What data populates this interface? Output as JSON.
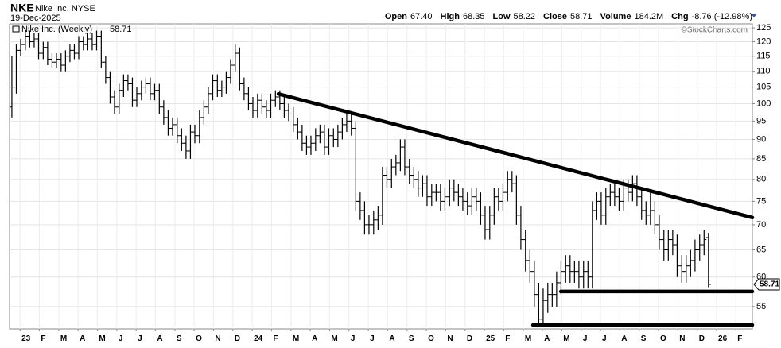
{
  "header": {
    "symbol": "NKE",
    "name": "Nike Inc. NYSE",
    "date": "19-Dec-2025",
    "stats": [
      {
        "label": "Open",
        "value": "67.40"
      },
      {
        "label": "High",
        "value": "68.35"
      },
      {
        "label": "Low",
        "value": "58.22"
      },
      {
        "label": "Close",
        "value": "58.71"
      },
      {
        "label": "Volume",
        "value": "184.2M"
      },
      {
        "label": "Chg",
        "value": "-8.76 (-12.98%)"
      }
    ],
    "watermark": "©StockCharts.com"
  },
  "chart_data": {
    "type": "ohlc",
    "log_y": true,
    "grid": true,
    "x": [
      2022.965,
      2022.984,
      2023.003,
      2023.023,
      2023.042,
      2023.061,
      2023.08,
      2023.1,
      2023.119,
      2023.138,
      2023.157,
      2023.177,
      2023.196,
      2023.215,
      2023.234,
      2023.253,
      2023.273,
      2023.292,
      2023.311,
      2023.33,
      2023.35,
      2023.369,
      2023.388,
      2023.407,
      2023.427,
      2023.446,
      2023.465,
      2023.484,
      2023.503,
      2023.523,
      2023.542,
      2023.561,
      2023.58,
      2023.6,
      2023.619,
      2023.638,
      2023.657,
      2023.677,
      2023.696,
      2023.715,
      2023.734,
      2023.753,
      2023.773,
      2023.792,
      2023.811,
      2023.83,
      2023.85,
      2023.869,
      2023.888,
      2023.907,
      2023.927,
      2023.946,
      2023.965,
      2023.984,
      2024.003,
      2024.023,
      2024.042,
      2024.061,
      2024.08,
      2024.1,
      2024.119,
      2024.138,
      2024.157,
      2024.177,
      2024.196,
      2024.215,
      2024.234,
      2024.253,
      2024.273,
      2024.292,
      2024.311,
      2024.33,
      2024.35,
      2024.369,
      2024.388,
      2024.407,
      2024.427,
      2024.446,
      2024.465,
      2024.484,
      2024.503,
      2024.523,
      2024.542,
      2024.561,
      2024.58,
      2024.6,
      2024.619,
      2024.638,
      2024.657,
      2024.677,
      2024.696,
      2024.715,
      2024.734,
      2024.753,
      2024.773,
      2024.792,
      2024.811,
      2024.83,
      2024.85,
      2024.869,
      2024.888,
      2024.907,
      2024.927,
      2024.946,
      2024.965,
      2024.984,
      2025.003,
      2025.023,
      2025.042,
      2025.061,
      2025.08,
      2025.1,
      2025.119,
      2025.138,
      2025.157,
      2025.177,
      2025.196,
      2025.215,
      2025.234,
      2025.253,
      2025.273,
      2025.292,
      2025.311,
      2025.33,
      2025.35,
      2025.369,
      2025.388,
      2025.407,
      2025.427,
      2025.446,
      2025.465,
      2025.484,
      2025.503,
      2025.523,
      2025.542,
      2025.561,
      2025.58,
      2025.6,
      2025.619,
      2025.638,
      2025.657,
      2025.677,
      2025.696,
      2025.715,
      2025.734,
      2025.753,
      2025.773,
      2025.792,
      2025.811,
      2025.83,
      2025.85,
      2025.869,
      2025.888,
      2025.907,
      2025.927,
      2025.946,
      2025.965
    ],
    "series": [
      {
        "name": "Nike Inc. (Weekly)",
        "color": "#000000",
        "open": [
          99,
          105,
          117,
          119,
          122,
          120,
          121,
          116,
          118,
          114,
          113,
          114,
          112,
          115,
          117,
          116,
          120,
          119,
          121,
          119,
          122,
          113,
          108,
          102,
          99,
          104,
          107,
          106,
          101,
          103,
          105,
          106,
          103,
          104,
          99,
          96,
          93,
          94,
          91,
          89,
          87,
          92,
          91,
          96,
          99,
          103,
          107,
          104,
          105,
          108,
          112,
          116,
          106,
          103,
          100,
          98,
          101,
          99,
          98,
          101,
          102,
          100,
          98,
          97,
          94,
          92,
          89,
          88,
          89,
          91,
          92,
          88,
          91,
          90,
          92,
          94,
          95,
          93,
          75,
          73,
          70,
          70,
          71,
          72,
          81,
          80,
          83,
          84,
          88,
          83,
          81,
          80,
          78,
          79,
          76,
          77,
          77,
          75,
          76,
          78,
          77,
          76,
          75,
          74,
          76,
          75,
          72,
          69,
          72,
          76,
          75,
          77,
          80,
          79,
          72,
          67,
          63,
          61,
          57,
          53,
          56,
          57,
          57,
          59,
          61,
          62,
          61,
          61,
          60,
          61,
          60,
          73,
          75,
          72,
          76,
          77,
          76,
          75,
          78,
          77,
          79,
          76,
          73,
          72,
          73,
          70,
          67,
          65,
          67,
          66,
          62,
          61,
          62,
          63,
          65,
          66,
          67.4
        ],
        "high": [
          115,
          119,
          121,
          124,
          124,
          123,
          123,
          120,
          120,
          116,
          116,
          116,
          117,
          119,
          119,
          122,
          122,
          123,
          123,
          124,
          124,
          115,
          110,
          104,
          106,
          109,
          109,
          108,
          105,
          107,
          108,
          108,
          106,
          106,
          101,
          98,
          96,
          96,
          93,
          91,
          94,
          94,
          98,
          101,
          105,
          109,
          109,
          107,
          110,
          114,
          119,
          118,
          108,
          105,
          102,
          103,
          103,
          101,
          103,
          104,
          104,
          102,
          100,
          99,
          96,
          94,
          91,
          91,
          93,
          94,
          94,
          93,
          93,
          94,
          96,
          97,
          97,
          95,
          77,
          75,
          72,
          73,
          74,
          83,
          83,
          85,
          86,
          90,
          90,
          85,
          83,
          82,
          81,
          81,
          79,
          79,
          79,
          78,
          80,
          80,
          79,
          78,
          77,
          78,
          78,
          77,
          74,
          74,
          78,
          78,
          79,
          82,
          82,
          81,
          74,
          69,
          65,
          63,
          59,
          58,
          59,
          59,
          61,
          63,
          64,
          64,
          63,
          63,
          63,
          63,
          75,
          77,
          77,
          78,
          79,
          79,
          78,
          80,
          80,
          81,
          81,
          78,
          75,
          77,
          75,
          72,
          69,
          69,
          69,
          68,
          64,
          64,
          65,
          67,
          68,
          69,
          68.35
        ],
        "low": [
          96,
          103,
          115,
          117,
          118,
          118,
          114,
          114,
          112,
          111,
          111,
          110,
          110,
          113,
          114,
          114,
          117,
          117,
          117,
          117,
          111,
          106,
          100,
          97,
          97,
          102,
          104,
          99,
          99,
          101,
          103,
          101,
          101,
          97,
          94,
          91,
          91,
          89,
          87,
          85,
          85,
          89,
          89,
          94,
          97,
          101,
          102,
          102,
          103,
          106,
          110,
          104,
          101,
          98,
          96,
          96,
          97,
          96,
          96,
          99,
          98,
          96,
          95,
          92,
          90,
          87,
          86,
          86,
          87,
          89,
          86,
          86,
          88,
          88,
          90,
          92,
          91,
          73,
          71,
          68,
          68,
          68,
          69,
          70,
          78,
          78,
          81,
          82,
          81,
          79,
          78,
          76,
          76,
          74,
          74,
          75,
          73,
          73,
          74,
          75,
          74,
          73,
          72,
          72,
          73,
          70,
          67,
          67,
          70,
          73,
          73,
          75,
          77,
          70,
          65,
          61,
          59,
          55,
          52,
          52,
          54,
          55,
          55,
          57,
          59,
          59,
          59,
          58,
          58,
          58,
          58,
          71,
          70,
          70,
          74,
          74,
          73,
          73,
          75,
          75,
          74,
          71,
          70,
          70,
          68,
          65,
          63,
          63,
          64,
          60,
          59,
          59,
          60,
          61,
          63,
          64,
          58.22
        ],
        "close": [
          105,
          117,
          119,
          122,
          120,
          121,
          116,
          118,
          114,
          113,
          114,
          112,
          115,
          117,
          116,
          120,
          119,
          121,
          119,
          122,
          113,
          108,
          102,
          99,
          104,
          107,
          106,
          101,
          103,
          105,
          106,
          103,
          104,
          99,
          96,
          93,
          94,
          91,
          89,
          87,
          92,
          91,
          96,
          99,
          103,
          107,
          104,
          105,
          108,
          112,
          116,
          106,
          103,
          100,
          98,
          101,
          99,
          98,
          101,
          102,
          100,
          98,
          97,
          94,
          92,
          89,
          88,
          89,
          91,
          92,
          88,
          91,
          90,
          92,
          94,
          95,
          93,
          75,
          73,
          70,
          70,
          71,
          72,
          81,
          80,
          83,
          84,
          88,
          83,
          81,
          80,
          78,
          79,
          76,
          77,
          77,
          75,
          76,
          78,
          77,
          76,
          75,
          74,
          76,
          75,
          72,
          69,
          72,
          76,
          75,
          77,
          80,
          79,
          72,
          67,
          63,
          61,
          57,
          53,
          56,
          57,
          57,
          59,
          61,
          62,
          61,
          61,
          60,
          61,
          60,
          73,
          75,
          72,
          76,
          77,
          76,
          75,
          78,
          77,
          79,
          76,
          73,
          72,
          73,
          70,
          67,
          65,
          67,
          66,
          62,
          61,
          62,
          63,
          65,
          66,
          67,
          58.71
        ]
      }
    ],
    "xlim": [
      2022.955,
      2026.154
    ],
    "ylim": [
      51.5,
      126.5
    ],
    "yticks": [
      55,
      60,
      65,
      70,
      75,
      80,
      85,
      90,
      95,
      100,
      105,
      110,
      115,
      120,
      125
    ],
    "xticks": [
      {
        "value": 2023,
        "label": "23"
      },
      {
        "value": 2023.083,
        "label": "F"
      },
      {
        "value": 2023.167,
        "label": "M"
      },
      {
        "value": 2023.25,
        "label": "A"
      },
      {
        "value": 2023.333,
        "label": "M"
      },
      {
        "value": 2023.417,
        "label": "J"
      },
      {
        "value": 2023.5,
        "label": "J"
      },
      {
        "value": 2023.583,
        "label": "A"
      },
      {
        "value": 2023.667,
        "label": "S"
      },
      {
        "value": 2023.75,
        "label": "O"
      },
      {
        "value": 2023.833,
        "label": "N"
      },
      {
        "value": 2023.917,
        "label": "D"
      },
      {
        "value": 2024,
        "label": "24"
      },
      {
        "value": 2024.083,
        "label": "F"
      },
      {
        "value": 2024.167,
        "label": "M"
      },
      {
        "value": 2024.25,
        "label": "A"
      },
      {
        "value": 2024.333,
        "label": "M"
      },
      {
        "value": 2024.417,
        "label": "J"
      },
      {
        "value": 2024.5,
        "label": "J"
      },
      {
        "value": 2024.583,
        "label": "A"
      },
      {
        "value": 2024.667,
        "label": "S"
      },
      {
        "value": 2024.75,
        "label": "O"
      },
      {
        "value": 2024.833,
        "label": "N"
      },
      {
        "value": 2024.917,
        "label": "D"
      },
      {
        "value": 2025,
        "label": "25"
      },
      {
        "value": 2025.083,
        "label": "F"
      },
      {
        "value": 2025.167,
        "label": "M"
      },
      {
        "value": 2025.25,
        "label": "A"
      },
      {
        "value": 2025.333,
        "label": "M"
      },
      {
        "value": 2025.417,
        "label": "J"
      },
      {
        "value": 2025.5,
        "label": "J"
      },
      {
        "value": 2025.583,
        "label": "A"
      },
      {
        "value": 2025.667,
        "label": "S"
      },
      {
        "value": 2025.75,
        "label": "O"
      },
      {
        "value": 2025.833,
        "label": "N"
      },
      {
        "value": 2025.917,
        "label": "D"
      },
      {
        "value": 2026,
        "label": "26"
      },
      {
        "value": 2026.083,
        "label": "F"
      }
    ],
    "trendlines": [
      {
        "x": [
          2024.113,
          2026.154
        ],
        "y": [
          102.9,
          71.5
        ]
      },
      {
        "x": [
          2025.329,
          2026.154
        ],
        "y": [
          57.5,
          57.5
        ]
      },
      {
        "x": [
          2025.209,
          2026.154
        ],
        "y": [
          52.1,
          52.1
        ]
      }
    ]
  }
}
